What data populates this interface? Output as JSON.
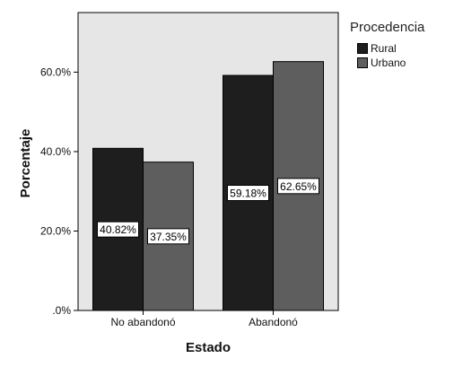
{
  "chart_data": {
    "type": "bar",
    "categories": [
      "No abandonó",
      "Abandonó"
    ],
    "series": [
      {
        "name": "Rural",
        "values": [
          40.82,
          59.18
        ],
        "color": "#1e1e1e"
      },
      {
        "name": "Urbano",
        "values": [
          37.35,
          62.65
        ],
        "color": "#5e5e5e"
      }
    ],
    "data_labels": [
      [
        "40.82%",
        "59.18%"
      ],
      [
        "37.35%",
        "62.65%"
      ]
    ],
    "xlabel": "Estado",
    "ylabel": "Porcentaje",
    "yticks": [
      0,
      20,
      40,
      60
    ],
    "ytick_labels": [
      ".0%",
      "20.0%",
      "40.0%",
      "60.0%"
    ],
    "ylim": [
      0,
      75
    ],
    "legend_title": "Procedencia",
    "legend_position": "top-right",
    "plot_background": "#e6e6e6",
    "grid": false
  }
}
